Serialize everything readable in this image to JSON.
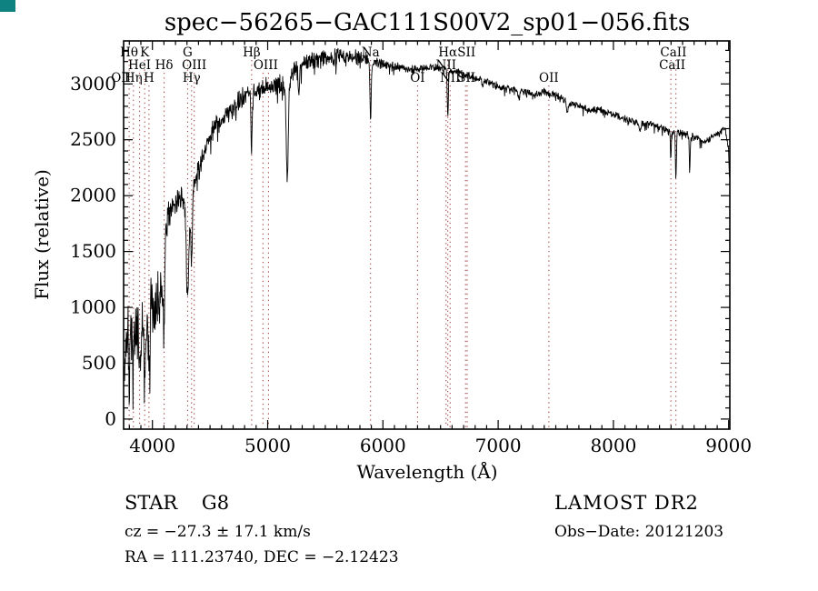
{
  "title": "spec−56265−GAC111S00V2_sp01−056.fits",
  "corner_mark_color": "#0e8181",
  "footer": {
    "left": {
      "class_line": "STAR    G8",
      "cz_line": "cz = −27.3 ± 17.1 km/s",
      "radec_line": "RA = 111.23740, DEC =  −2.12423"
    },
    "right": {
      "survey_line": "LAMOST DR2",
      "obsdate_line": "Obs−Date: 20121203"
    }
  },
  "chart_data": {
    "type": "line",
    "title": "spec−56265−GAC111S00V2_sp01−056.fits",
    "xlabel": "Wavelength (Å)",
    "ylabel": "Flux (relative)",
    "xlim": [
      3750,
      9010
    ],
    "ylim": [
      -90,
      3385
    ],
    "x_ticks": [
      4000,
      5000,
      6000,
      7000,
      8000,
      9000
    ],
    "y_ticks": [
      0,
      500,
      1000,
      1500,
      2000,
      2500,
      3000
    ],
    "x_minor_step": 100,
    "y_minor_step": 100,
    "grid": false,
    "legend": "none",
    "line_color": "#000000",
    "marker_color": "#993333",
    "noise_seed": 20121203,
    "sample_step": 3,
    "series_name": "spectrum",
    "envelope": [
      [
        3756,
        500
      ],
      [
        3770,
        750
      ],
      [
        3800,
        750
      ],
      [
        3830,
        800
      ],
      [
        3860,
        850
      ],
      [
        3890,
        750
      ],
      [
        3920,
        800
      ],
      [
        3950,
        800
      ],
      [
        3980,
        1000
      ],
      [
        4010,
        1050
      ],
      [
        4040,
        1100
      ],
      [
        4070,
        1050
      ],
      [
        4095,
        1200
      ],
      [
        4115,
        1750
      ],
      [
        4140,
        1850
      ],
      [
        4170,
        1900
      ],
      [
        4210,
        1950
      ],
      [
        4250,
        2000
      ],
      [
        4285,
        1900
      ],
      [
        4320,
        1900
      ],
      [
        4360,
        2100
      ],
      [
        4420,
        2300
      ],
      [
        4480,
        2500
      ],
      [
        4540,
        2600
      ],
      [
        4620,
        2700
      ],
      [
        4700,
        2780
      ],
      [
        4780,
        2870
      ],
      [
        4860,
        2920
      ],
      [
        4940,
        2940
      ],
      [
        5020,
        2980
      ],
      [
        5100,
        3000
      ],
      [
        5160,
        2950
      ],
      [
        5220,
        3100
      ],
      [
        5300,
        3180
      ],
      [
        5400,
        3220
      ],
      [
        5500,
        3230
      ],
      [
        5600,
        3240
      ],
      [
        5700,
        3240
      ],
      [
        5800,
        3240
      ],
      [
        5900,
        3210
      ],
      [
        6000,
        3190
      ],
      [
        6100,
        3160
      ],
      [
        6200,
        3140
      ],
      [
        6300,
        3130
      ],
      [
        6400,
        3150
      ],
      [
        6500,
        3140
      ],
      [
        6600,
        3120
      ],
      [
        6700,
        3090
      ],
      [
        6800,
        3060
      ],
      [
        6900,
        3020
      ],
      [
        7000,
        2980
      ],
      [
        7100,
        2960
      ],
      [
        7200,
        2940
      ],
      [
        7300,
        2910
      ],
      [
        7400,
        2930
      ],
      [
        7500,
        2900
      ],
      [
        7600,
        2850
      ],
      [
        7700,
        2800
      ],
      [
        7800,
        2770
      ],
      [
        7900,
        2770
      ],
      [
        8000,
        2730
      ],
      [
        8100,
        2680
      ],
      [
        8200,
        2650
      ],
      [
        8300,
        2640
      ],
      [
        8400,
        2620
      ],
      [
        8500,
        2580
      ],
      [
        8600,
        2560
      ],
      [
        8700,
        2520
      ],
      [
        8800,
        2480
      ],
      [
        8900,
        2560
      ],
      [
        8970,
        2600
      ],
      [
        9000,
        2400
      ],
      [
        9008,
        2100
      ]
    ],
    "noise_amplitude": [
      [
        3756,
        400
      ],
      [
        3900,
        400
      ],
      [
        3960,
        360
      ],
      [
        4040,
        330
      ],
      [
        4095,
        260
      ],
      [
        4130,
        150
      ],
      [
        4300,
        140
      ],
      [
        4500,
        120
      ],
      [
        4800,
        110
      ],
      [
        5100,
        110
      ],
      [
        5300,
        100
      ],
      [
        5700,
        90
      ],
      [
        5950,
        55
      ],
      [
        6300,
        45
      ],
      [
        6600,
        42
      ],
      [
        7000,
        38
      ],
      [
        7500,
        38
      ],
      [
        8000,
        42
      ],
      [
        8500,
        40
      ],
      [
        9008,
        35
      ]
    ],
    "absorption_dips": [
      [
        3798,
        300,
        5
      ],
      [
        3835,
        350,
        5
      ],
      [
        3889,
        300,
        5
      ],
      [
        3933,
        500,
        6
      ],
      [
        3970,
        500,
        6
      ],
      [
        4101,
        600,
        5
      ],
      [
        4305,
        800,
        10
      ],
      [
        4340,
        600,
        6
      ],
      [
        4861,
        480,
        6
      ],
      [
        5170,
        850,
        8
      ],
      [
        5270,
        250,
        6
      ],
      [
        5893,
        500,
        6
      ],
      [
        6563,
        430,
        5
      ],
      [
        6867,
        80,
        6
      ],
      [
        7180,
        80,
        8
      ],
      [
        7600,
        100,
        9
      ],
      [
        8230,
        80,
        6
      ],
      [
        8498,
        260,
        4
      ],
      [
        8542,
        420,
        4
      ],
      [
        8662,
        320,
        4
      ]
    ],
    "dotted_lines": [
      {
        "wavelength": 3727,
        "row": 3
      },
      {
        "wavelength": 3798,
        "row": 1
      },
      {
        "wavelength": 3835,
        "row": 3
      },
      {
        "wavelength": 3889,
        "row": 2
      },
      {
        "wavelength": 3933,
        "row": 1
      },
      {
        "wavelength": 3970,
        "row": 3
      },
      {
        "wavelength": 4102,
        "row": 2
      },
      {
        "wavelength": 4305,
        "row": 1
      },
      {
        "wavelength": 4340,
        "row": 3
      },
      {
        "wavelength": 4363,
        "row": 2
      },
      {
        "wavelength": 4861,
        "row": 1
      },
      {
        "wavelength": 4959,
        "row": 2
      },
      {
        "wavelength": 5007,
        "row": 2
      },
      {
        "wavelength": 5893,
        "row": 1
      },
      {
        "wavelength": 6300,
        "row": 3
      },
      {
        "wavelength": 6548,
        "row": 2
      },
      {
        "wavelength": 6563,
        "row": 1
      },
      {
        "wavelength": 6583,
        "row": 3
      },
      {
        "wavelength": 6717,
        "row": 3
      },
      {
        "wavelength": 6731,
        "row": 3
      },
      {
        "wavelength": 7440,
        "row": 3
      },
      {
        "wavelength": 8498,
        "row": 1
      },
      {
        "wavelength": 8542,
        "row": 1
      }
    ],
    "line_markers": [
      {
        "label": "OII",
        "wavelength": 3727,
        "row": 3
      },
      {
        "label": "Hθ",
        "wavelength": 3798,
        "row": 1
      },
      {
        "label": "Hη",
        "wavelength": 3835,
        "row": 3
      },
      {
        "label": "HeI",
        "wavelength": 3889,
        "row": 2
      },
      {
        "label": "K",
        "wavelength": 3933,
        "row": 1
      },
      {
        "label": "H",
        "wavelength": 3970,
        "row": 3
      },
      {
        "label": "Hδ",
        "wavelength": 4102,
        "row": 2
      },
      {
        "label": "G",
        "wavelength": 4305,
        "row": 1
      },
      {
        "label": "Hγ",
        "wavelength": 4340,
        "row": 3
      },
      {
        "label": "OIII",
        "wavelength": 4363,
        "row": 2
      },
      {
        "label": "Hβ",
        "wavelength": 4861,
        "row": 1
      },
      {
        "label": "OIII",
        "wavelength": 4983,
        "row": 2
      },
      {
        "label": "Na",
        "wavelength": 5893,
        "row": 1
      },
      {
        "label": "OI",
        "wavelength": 6300,
        "row": 3
      },
      {
        "label": "NII",
        "wavelength": 6548,
        "row": 2
      },
      {
        "label": "Hα",
        "wavelength": 6563,
        "row": 1
      },
      {
        "label": "NII",
        "wavelength": 6583,
        "row": 3
      },
      {
        "label": "SII",
        "wavelength": 6725,
        "row": 1
      },
      {
        "label": "SII",
        "wavelength": 6724,
        "row": 3
      },
      {
        "label": "OII",
        "wavelength": 7440,
        "row": 3
      },
      {
        "label": "CaII",
        "wavelength": 8520,
        "row": 1
      },
      {
        "label": "CaII",
        "wavelength": 8510,
        "row": 2
      }
    ]
  }
}
